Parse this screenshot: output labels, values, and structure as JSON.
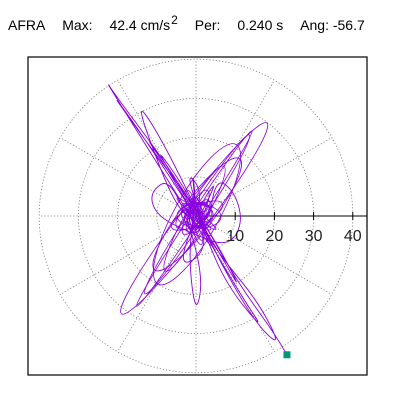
{
  "header": {
    "station": "AFRA",
    "max_label": "Max:",
    "max_value": "42.4",
    "max_unit": "cm/s",
    "max_unit_exp": "2",
    "per_label": "Per:",
    "per_value": "0.240 s",
    "ang_label": "Ang:",
    "ang_value": "-56.7"
  },
  "chart_data": {
    "type": "polar-particle-motion",
    "rlim": [
      0,
      40
    ],
    "ring_labels": [
      "10",
      "20",
      "30",
      "40"
    ],
    "ring_values": [
      10,
      20,
      30,
      40
    ],
    "spoke_angles_deg": [
      0,
      30,
      60,
      90,
      120,
      150,
      180,
      210,
      240,
      270,
      300,
      330
    ],
    "grid": "dotted",
    "trace_color": "#8800dd",
    "marker_color": "#009977",
    "max_amplitude": 42.4,
    "max_angle_deg": -56.7,
    "marker_point": {
      "x": 23.2,
      "y": -35.4
    },
    "trace_points": [
      [
        0,
        0
      ],
      [
        2,
        6
      ],
      [
        -3,
        12
      ],
      [
        4,
        -8
      ],
      [
        -5,
        -14
      ],
      [
        1,
        3
      ],
      [
        6,
        10
      ],
      [
        -2,
        -6
      ],
      [
        -16,
        30
      ],
      [
        -10,
        22
      ],
      [
        2,
        -2
      ],
      [
        5,
        -10
      ],
      [
        -4,
        4
      ],
      [
        -24,
        36
      ],
      [
        -20,
        30
      ],
      [
        -8,
        14
      ],
      [
        6,
        -8
      ],
      [
        12,
        -20
      ],
      [
        4,
        -6
      ],
      [
        -12,
        20
      ],
      [
        -2,
        6
      ],
      [
        2,
        -4
      ],
      [
        8,
        -18
      ],
      [
        18,
        -30
      ],
      [
        10,
        -18
      ],
      [
        -6,
        10
      ],
      [
        -14,
        22
      ],
      [
        -4,
        8
      ],
      [
        3,
        -4
      ],
      [
        5,
        10
      ],
      [
        10,
        6
      ],
      [
        12,
        -2
      ],
      [
        8,
        -8
      ],
      [
        -2,
        -4
      ],
      [
        -10,
        0
      ],
      [
        -12,
        6
      ],
      [
        -6,
        10
      ],
      [
        2,
        -14
      ],
      [
        0,
        -26
      ],
      [
        -2,
        -10
      ],
      [
        0,
        4
      ],
      [
        -1,
        12
      ],
      [
        0,
        0
      ],
      [
        14,
        -26
      ],
      [
        22,
        -34
      ],
      [
        16,
        -22
      ],
      [
        6,
        -10
      ],
      [
        -4,
        6
      ],
      [
        -16,
        24
      ],
      [
        -22,
        32
      ],
      [
        -12,
        18
      ],
      [
        0,
        2
      ],
      [
        10,
        -16
      ],
      [
        20,
        -30
      ],
      [
        23.2,
        -35.4
      ]
    ]
  }
}
